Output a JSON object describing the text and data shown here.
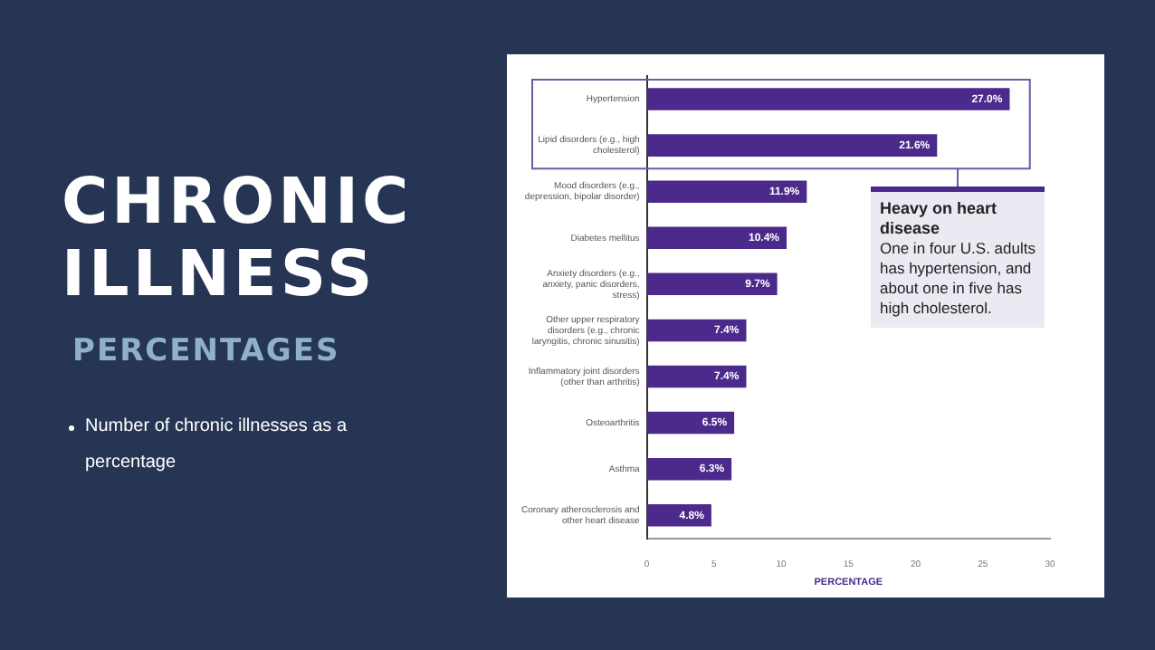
{
  "chart_data": {
    "type": "bar",
    "orientation": "horizontal",
    "title": "CHRONIC ILLNESS",
    "subtitle": "PERCENTAGES",
    "xlabel": "PERCENTAGE",
    "categories": [
      "Hypertension",
      "Lipid disorders (e.g., high cholesterol)",
      "Mood disorders (e.g., depression, bipolar disorder)",
      "Diabetes mellitus",
      "Anxiety disorders (e.g., anxiety, panic disorders, stress)",
      "Other upper respiratory disorders (e.g., chronic laryngitis, chronic sinusitis)",
      "Inflammatory joint disorders (other than arthritis)",
      "Osteoarthritis",
      "Asthma",
      "Coronary atherosclerosis and other heart disease"
    ],
    "values": [
      27.0,
      21.6,
      11.9,
      10.4,
      9.7,
      7.4,
      7.4,
      6.5,
      6.3,
      4.8
    ],
    "value_labels": [
      "27.0%",
      "21.6%",
      "11.9%",
      "10.4%",
      "9.7%",
      "7.4%",
      "7.4%",
      "6.5%",
      "6.3%",
      "4.8%"
    ],
    "color": "#4b2a8c",
    "xlim": [
      0,
      30
    ],
    "xticks": [
      0,
      5,
      10,
      15,
      20,
      25,
      30
    ],
    "grid": false,
    "legend": false,
    "annotations": [
      "Number of chronic illnesses as a percentage",
      "Heavy on heart disease",
      "One in four U.S. adults has hypertension, and about one in five has high cholesterol."
    ]
  }
}
